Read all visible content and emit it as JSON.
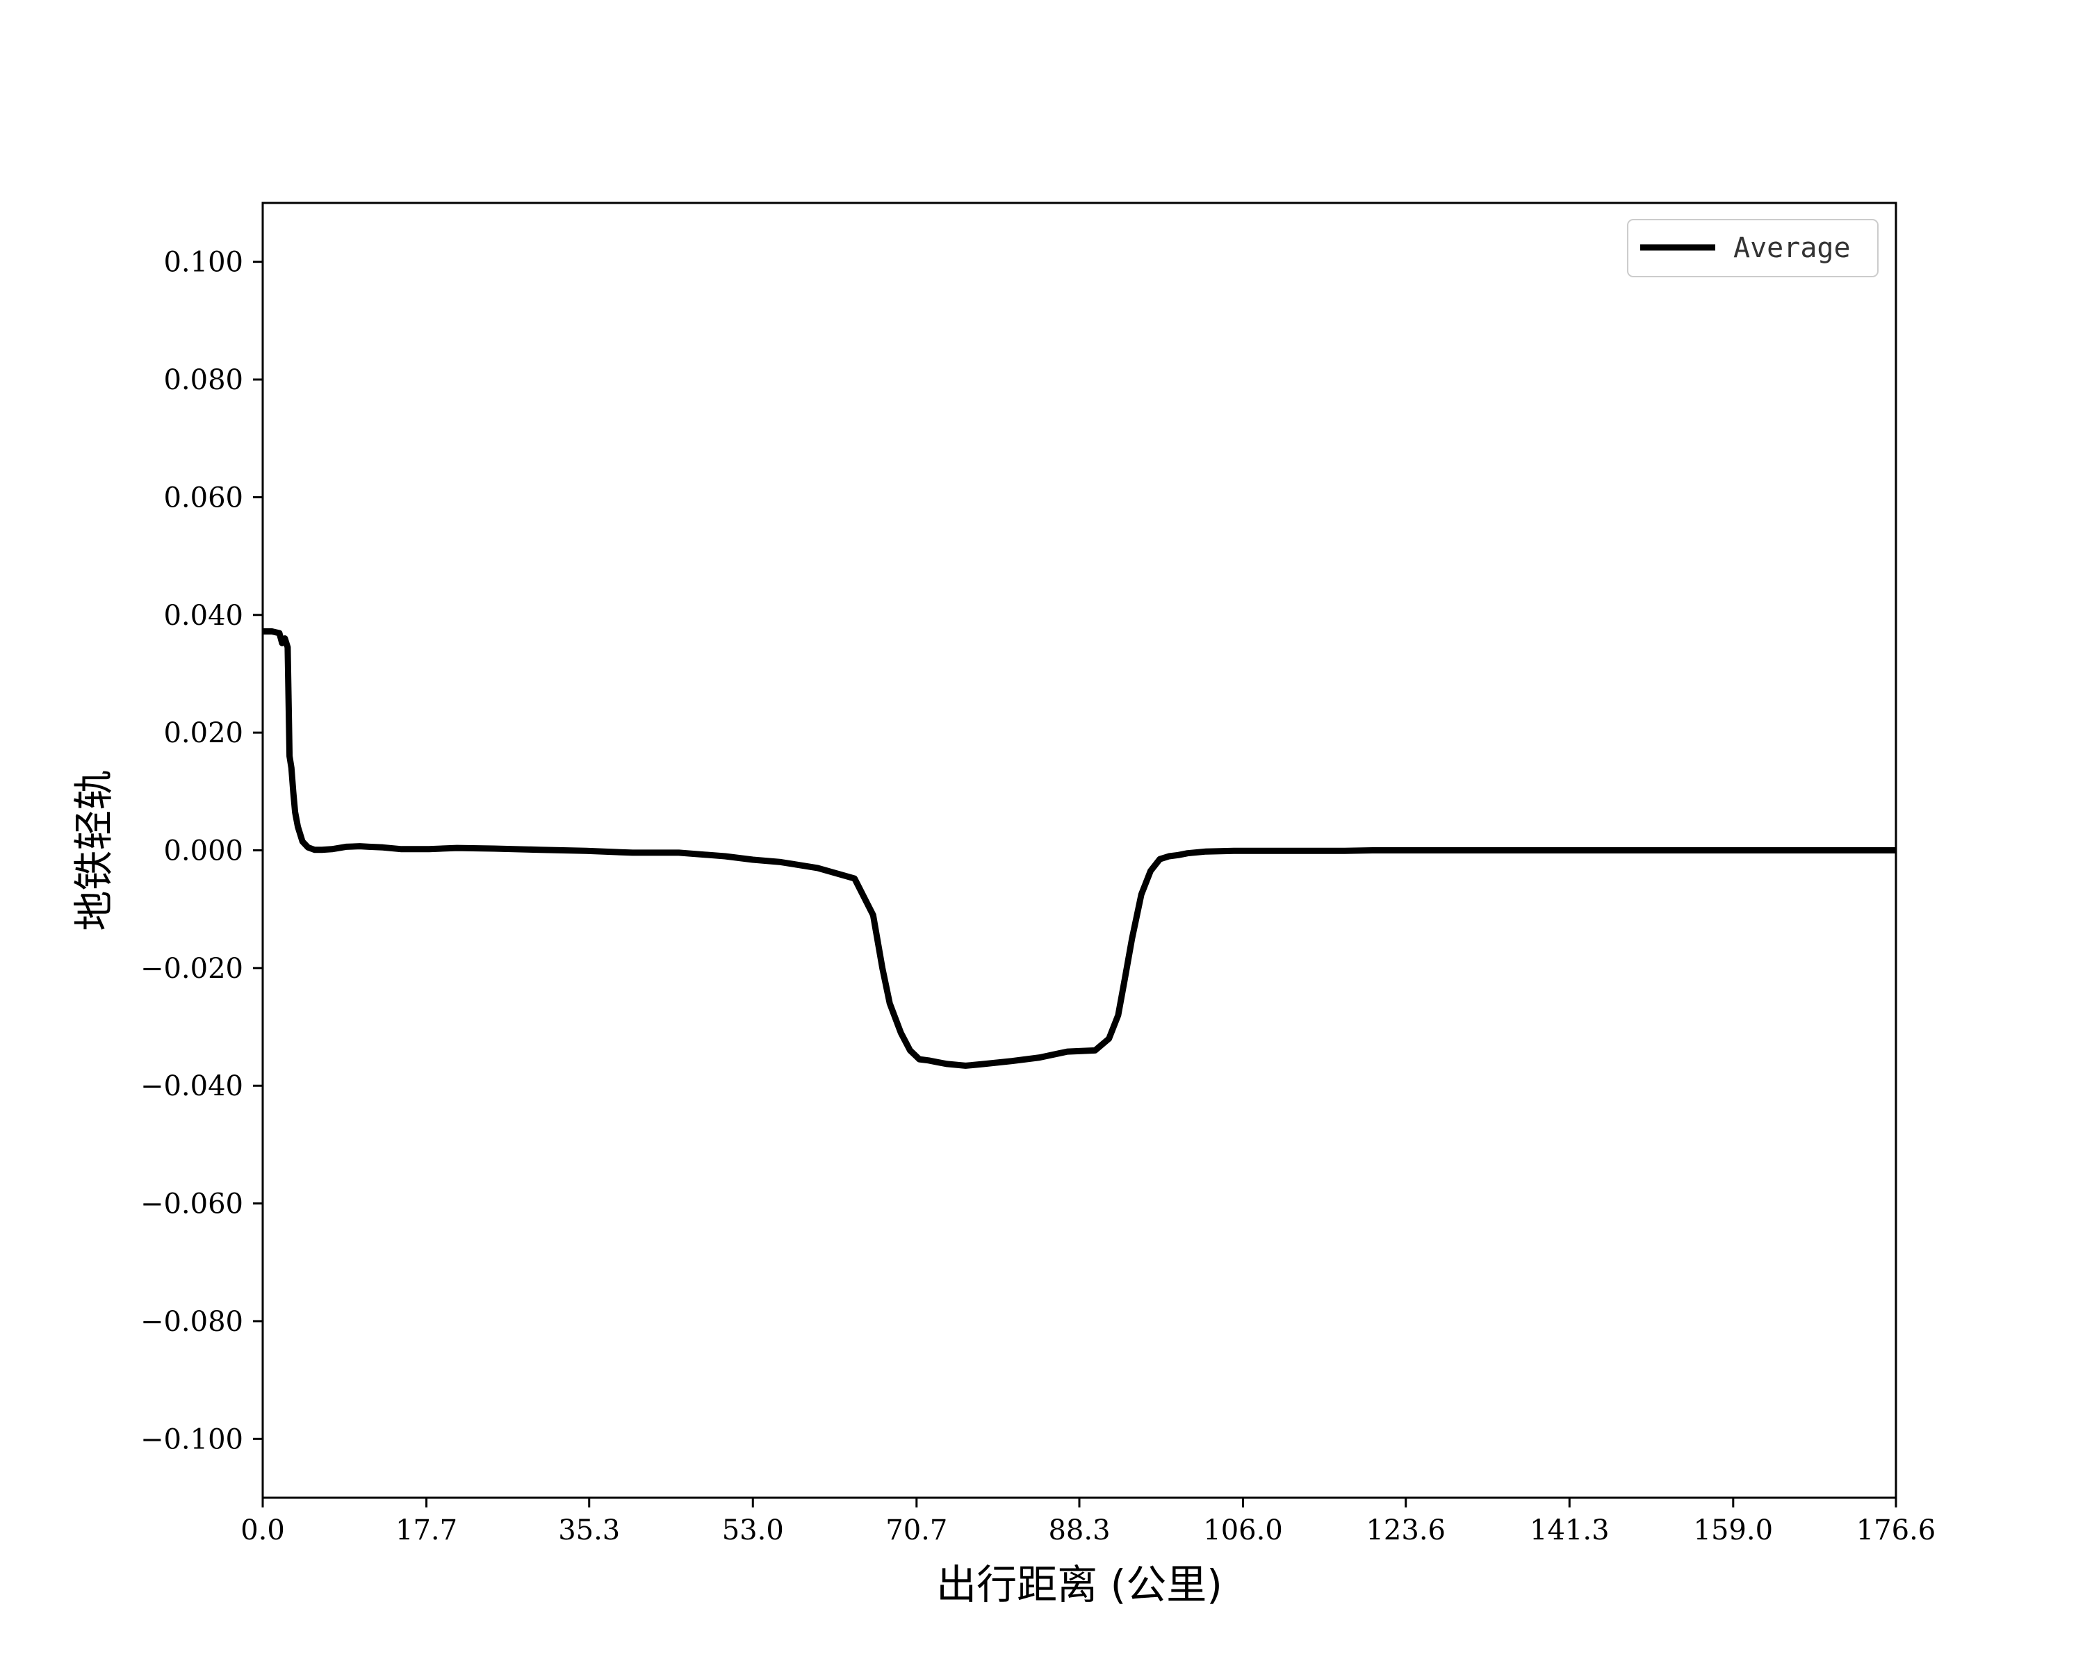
{
  "chart_data": {
    "type": "line",
    "title": "",
    "xlabel": "出行距离 (公里)",
    "ylabel": "地铁轻轨",
    "xlim": [
      0,
      176.6
    ],
    "ylim": [
      -0.11,
      0.11
    ],
    "x_ticks": [
      0.0,
      17.7,
      35.3,
      53.0,
      70.7,
      88.3,
      106.0,
      123.6,
      141.3,
      159.0,
      176.6
    ],
    "x_tick_labels": [
      "0.0",
      "17.7",
      "35.3",
      "53.0",
      "70.7",
      "88.3",
      "106.0",
      "123.6",
      "141.3",
      "159.0",
      "176.6"
    ],
    "y_ticks": [
      0.1,
      0.08,
      0.06,
      0.04,
      0.02,
      0.0,
      -0.02,
      -0.04,
      -0.06,
      -0.08,
      -0.1
    ],
    "y_tick_labels": [
      "0.100",
      "0.080",
      "0.060",
      "0.040",
      "0.020",
      "0.000",
      "−0.020",
      "−0.040",
      "−0.060",
      "−0.080",
      "−0.100"
    ],
    "grid": false,
    "legend": {
      "position": "top-right"
    },
    "series": [
      {
        "name": "Average",
        "color": "#000000",
        "x": [
          0.0,
          1.0,
          1.8,
          2.1,
          2.4,
          2.7,
          2.9,
          3.1,
          3.3,
          3.5,
          3.8,
          4.3,
          4.9,
          5.6,
          6.4,
          7.5,
          9.0,
          10.5,
          11.5,
          13.0,
          15.0,
          18.0,
          21.0,
          25.0,
          30.0,
          35.0,
          40.0,
          45.0,
          50.0,
          53.0,
          56.0,
          60.0,
          64.0,
          66.0,
          67.0,
          67.8,
          69.0,
          70.0,
          71.0,
          72.0,
          73.0,
          74.0,
          76.0,
          78.0,
          81.0,
          84.0,
          87.0,
          90.0,
          91.5,
          92.5,
          93.2,
          94.0,
          95.0,
          96.0,
          97.0,
          98.0,
          99.0,
          100.0,
          102.0,
          105.0,
          110.0,
          115.0,
          117.0,
          120.0,
          128.0,
          140.0,
          150.0,
          160.0,
          176.6
        ],
        "y": [
          0.0372,
          0.0372,
          0.0369,
          0.0352,
          0.036,
          0.0345,
          0.016,
          0.014,
          0.01,
          0.0065,
          0.004,
          0.0015,
          0.0005,
          0.0001,
          0.0001,
          0.0002,
          0.0006,
          0.0007,
          0.0006,
          0.0005,
          0.0002,
          0.0002,
          0.0004,
          0.0003,
          0.0001,
          -0.0001,
          -0.0004,
          -0.0004,
          -0.001,
          -0.0016,
          -0.002,
          -0.003,
          -0.0048,
          -0.011,
          -0.02,
          -0.026,
          -0.031,
          -0.034,
          -0.0355,
          -0.0357,
          -0.036,
          -0.0363,
          -0.0366,
          -0.0363,
          -0.0358,
          -0.0352,
          -0.0342,
          -0.034,
          -0.032,
          -0.028,
          -0.022,
          -0.015,
          -0.0075,
          -0.0035,
          -0.0015,
          -0.001,
          -0.0008,
          -0.0005,
          -0.0002,
          -0.0001,
          -0.0001,
          -0.0001,
          -0.0001,
          0.0,
          0.0,
          0.0,
          0.0,
          0.0,
          0.0
        ]
      }
    ]
  }
}
